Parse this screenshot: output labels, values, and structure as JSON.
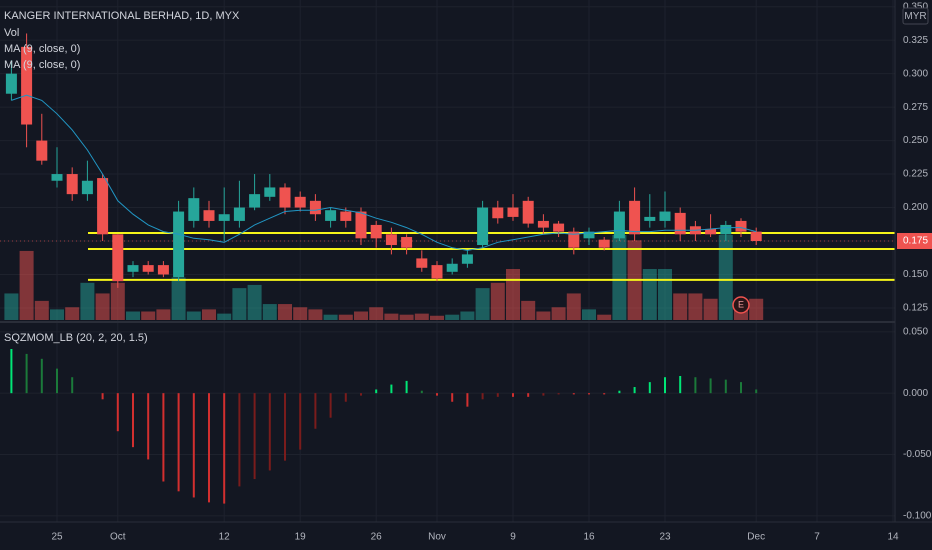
{
  "chart_data": [
    {
      "type": "candlestick",
      "title": "KANGER INTERNATIONAL BERHAD, 1D, MYX",
      "legend": [
        "Vol",
        "MA (9, close, 0)",
        "MA (9, close, 0)"
      ],
      "currency": "MYR",
      "earnings": "E",
      "open": [
        0.285,
        0.32,
        0.25,
        0.22,
        0.225,
        0.21,
        0.222,
        0.18,
        0.152,
        0.157,
        0.157,
        0.148,
        0.19,
        0.198,
        0.19,
        0.19,
        0.2,
        0.208,
        0.215,
        0.208,
        0.205,
        0.19,
        0.197,
        0.197,
        0.187,
        0.18,
        0.178,
        0.162,
        0.157,
        0.152,
        0.158,
        0.172,
        0.2,
        0.2,
        0.205,
        0.19,
        0.188,
        0.182,
        0.177,
        0.176,
        0.177,
        0.205,
        0.19,
        0.19,
        0.196,
        0.186,
        0.184,
        0.18,
        0.19,
        0.182,
        null,
        null,
        null,
        null,
        null,
        null,
        null,
        null,
        null
      ],
      "high": [
        0.31,
        0.33,
        0.27,
        0.245,
        0.23,
        0.235,
        0.225,
        0.18,
        0.16,
        0.16,
        0.16,
        0.205,
        0.215,
        0.205,
        0.215,
        0.22,
        0.225,
        0.225,
        0.218,
        0.212,
        0.21,
        0.2,
        0.2,
        0.2,
        0.19,
        0.185,
        0.18,
        0.168,
        0.16,
        0.162,
        0.168,
        0.205,
        0.205,
        0.21,
        0.208,
        0.195,
        0.19,
        0.185,
        0.185,
        0.178,
        0.205,
        0.215,
        0.21,
        0.212,
        0.2,
        0.19,
        0.195,
        0.19,
        0.192,
        0.185,
        null,
        null,
        null,
        null,
        null,
        null,
        null,
        null,
        null
      ],
      "low": [
        0.28,
        0.245,
        0.232,
        0.215,
        0.205,
        0.205,
        0.175,
        0.14,
        0.148,
        0.15,
        0.148,
        0.145,
        0.185,
        0.185,
        0.175,
        0.185,
        0.198,
        0.205,
        0.195,
        0.197,
        0.19,
        0.185,
        0.185,
        0.172,
        0.17,
        0.165,
        0.165,
        0.152,
        0.145,
        0.15,
        0.155,
        0.17,
        0.188,
        0.19,
        0.185,
        0.18,
        0.178,
        0.165,
        0.172,
        0.168,
        0.175,
        0.175,
        0.185,
        0.185,
        0.175,
        0.175,
        0.178,
        0.175,
        0.178,
        0.172,
        null,
        null,
        null,
        null,
        null,
        null,
        null,
        null,
        null
      ],
      "close": [
        0.3,
        0.262,
        0.235,
        0.225,
        0.21,
        0.22,
        0.18,
        0.145,
        0.157,
        0.152,
        0.15,
        0.197,
        0.207,
        0.19,
        0.195,
        0.2,
        0.21,
        0.215,
        0.2,
        0.2,
        0.195,
        0.198,
        0.19,
        0.177,
        0.177,
        0.172,
        0.17,
        0.155,
        0.147,
        0.158,
        0.165,
        0.2,
        0.192,
        0.193,
        0.188,
        0.185,
        0.182,
        0.17,
        0.182,
        0.17,
        0.197,
        0.18,
        0.193,
        0.197,
        0.18,
        0.18,
        0.18,
        0.187,
        0.182,
        0.175,
        null,
        null,
        null,
        null,
        null,
        null,
        null,
        null,
        null
      ],
      "volume": [
        25,
        65,
        18,
        10,
        12,
        35,
        25,
        35,
        8,
        8,
        10,
        40,
        8,
        10,
        6,
        30,
        33,
        15,
        15,
        12,
        10,
        5,
        5,
        8,
        12,
        6,
        5,
        6,
        4,
        5,
        8,
        30,
        35,
        48,
        18,
        8,
        12,
        25,
        10,
        5,
        80,
        75,
        48,
        48,
        25,
        25,
        20,
        80,
        18,
        20,
        null,
        null,
        null,
        null,
        null,
        null,
        null,
        null,
        null
      ],
      "ma": [
        0.28,
        0.284,
        0.28,
        0.27,
        0.258,
        0.243,
        0.225,
        0.205,
        0.195,
        0.187,
        0.182,
        0.18,
        0.177,
        0.176,
        0.174,
        0.18,
        0.187,
        0.192,
        0.197,
        0.198,
        0.198,
        0.2,
        0.198,
        0.196,
        0.192,
        0.189,
        0.185,
        0.18,
        0.174,
        0.17,
        0.168,
        0.17,
        0.174,
        0.176,
        0.178,
        0.18,
        0.181,
        0.18,
        0.181,
        0.182,
        0.183,
        0.182,
        0.182,
        0.183,
        0.183,
        0.183,
        0.184,
        0.185,
        0.185,
        0.182,
        null,
        null,
        null,
        null,
        null,
        null,
        null,
        null,
        null
      ],
      "levels": [
        0.181,
        0.169,
        0.146
      ],
      "last_price": 0.175,
      "ylim": [
        0.116,
        0.355
      ],
      "yticks": [
        0.125,
        {
          "value": 0.15,
          "label": "0.150"
        },
        0.175,
        {
          "value": 0.2,
          "label": "0.200"
        },
        0.225,
        {
          "value": 0.25,
          "label": "0.250"
        },
        0.275,
        {
          "value": 0.3,
          "label": "0.300"
        },
        0.325,
        {
          "value": 0.35,
          "label": "0.350"
        }
      ],
      "colors": {
        "up": "#26a69a",
        "down": "#ef5350",
        "ma": "#2196c4",
        "levels": "#f5f51a"
      },
      "grid": true
    },
    {
      "type": "bar",
      "title": "SQZMOM_LB (20, 2, 20, 1.5)",
      "categories": [
        null,
        null,
        null,
        "25",
        null,
        null,
        null,
        "Oct",
        null,
        null,
        null,
        null,
        null,
        null,
        "12",
        null,
        null,
        null,
        null,
        "19",
        null,
        null,
        null,
        null,
        "26",
        null,
        null,
        null,
        "Nov",
        null,
        null,
        null,
        null,
        "9",
        null,
        null,
        null,
        null,
        "16",
        null,
        null,
        null,
        null,
        "23",
        null,
        null,
        null,
        null,
        null,
        "Dec",
        null,
        null,
        null,
        "7",
        null,
        null,
        null,
        null,
        "14"
      ],
      "values": [
        0.036,
        0.032,
        0.028,
        0.02,
        0.013,
        0.0,
        -0.005,
        -0.031,
        -0.044,
        -0.054,
        -0.072,
        -0.08,
        -0.085,
        -0.089,
        -0.09,
        -0.076,
        -0.07,
        -0.063,
        -0.055,
        -0.046,
        -0.029,
        -0.02,
        -0.007,
        -0.002,
        0.003,
        0.007,
        0.01,
        0.002,
        -0.002,
        -0.007,
        -0.011,
        -0.005,
        -0.003,
        -0.003,
        -0.003,
        -0.002,
        -0.001,
        -0.001,
        -0.001,
        -0.001,
        0.002,
        0.005,
        0.009,
        0.013,
        0.014,
        0.013,
        0.012,
        0.011,
        0.009,
        0.003,
        null,
        null,
        null,
        null,
        null,
        null,
        null,
        null,
        null
      ],
      "ylim": [
        -0.105,
        0.058
      ],
      "yticks": [
        {
          "value": -0.1,
          "label": "-0.100"
        },
        {
          "value": -0.05,
          "label": "-0.050"
        },
        {
          "value": 0,
          "label": "0.000"
        },
        {
          "value": 0.05,
          "label": "0.050"
        }
      ],
      "colors": {
        "rise_pos": "#00e676",
        "fall_pos": "#1b7a3a",
        "fall_neg": "#d32f2f",
        "rise_neg": "#7a1c1c"
      },
      "grid": true
    }
  ]
}
